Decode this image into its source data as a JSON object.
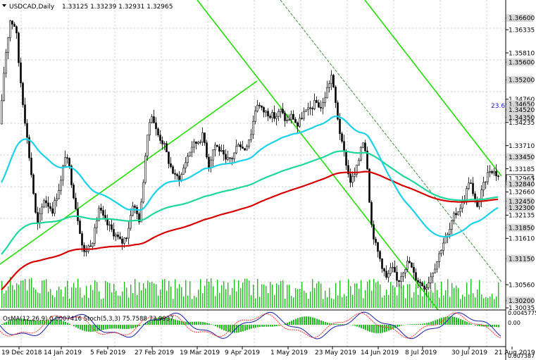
{
  "chart_data": {
    "type": "candlestick",
    "symbol_label": "USDCAD,Daily",
    "ohlc_label": "1.33125 1.33239 1.32931 1.32965",
    "fib_label": "23.6",
    "indicator_label": "OsMA(12,26,9) 0.0007416  Stoch(5,3,3) 75.7588 73.9937",
    "price_ticks": [
      "1.36600",
      "1.36335",
      "1.35810",
      "1.35600",
      "1.35200",
      "1.34760",
      "1.34650",
      "1.34520",
      "1.34350",
      "1.34235",
      "1.33710",
      "1.33450",
      "1.33185",
      "1.32965",
      "1.32840",
      "1.32660",
      "1.32450",
      "1.32300",
      "1.32135",
      "1.31850",
      "1.31610",
      "1.31150",
      "1.30560",
      "1.30200",
      "1.30035"
    ],
    "highlighted_ticks": [
      "1.36600",
      "1.35600",
      "1.35200",
      "1.34650",
      "1.34520",
      "1.34350",
      "1.33450",
      "1.32965",
      "1.32840",
      "1.32450",
      "1.32300",
      "1.31850",
      "1.31150",
      "1.30200"
    ],
    "current_price": "1.32965",
    "osma_ticks": [
      "0.0045775",
      "0.00",
      "0.007387"
    ],
    "date_ticks": [
      "19 Dec 2018",
      "14 Jan 2019",
      "5 Feb 2019",
      "27 Feb 2019",
      "19 Mar 2019",
      "9 Apr 2019",
      "1 May 2019",
      "23 May 2019",
      "14 Jun 2019",
      "8 Jul 2019",
      "30 Jul 2019",
      "21 Aug 2019"
    ],
    "price_range": [
      1.30035,
      1.3688
    ],
    "colors": {
      "ema_fast": "#1ad1e8",
      "ema_mid": "#1ed79a",
      "ema_slow": "#d50000",
      "trend": "#22dd00",
      "volume": "#22bb22",
      "osma": "#22bb22",
      "stoch_main": "#1a1aa0",
      "stoch_signal": "#ff3333"
    }
  }
}
